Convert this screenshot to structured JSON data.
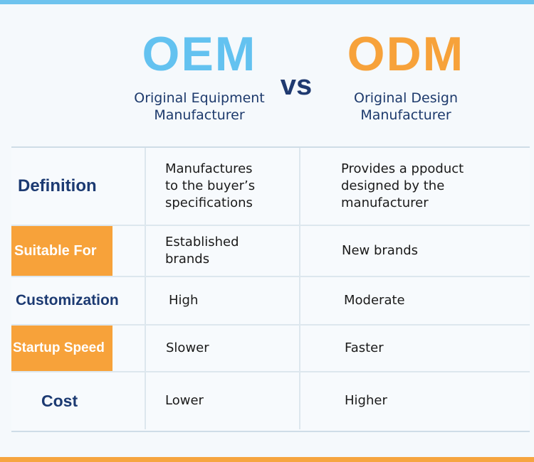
{
  "header": {
    "oem": {
      "title": "OEM",
      "subtitle_line1": "Original Equipment",
      "subtitle_line2": "Manufacturer"
    },
    "vs": "vs",
    "odm": {
      "title": "ODM",
      "subtitle_line1": "Original Design",
      "subtitle_line2": "Manufacturer"
    }
  },
  "colors": {
    "oem_blue": "#63c2f0",
    "odm_orange": "#f7a23a",
    "navy": "#1c3a72"
  },
  "rows": [
    {
      "label": "Definition",
      "oem": "Manufactures\nto the buyer’s\nspecifications",
      "odm": "Provides a ppoduct\ndesigned by the\nmanufacturer"
    },
    {
      "label": "Suitable For",
      "oem": "Established\nbrands",
      "odm": "New brands"
    },
    {
      "label": "Customization",
      "oem": "High",
      "odm": "Moderate"
    },
    {
      "label": "Startup Speed",
      "oem": "Slower",
      "odm": "Faster"
    },
    {
      "label": "Cost",
      "oem": "Lower",
      "odm": "Higher"
    }
  ]
}
